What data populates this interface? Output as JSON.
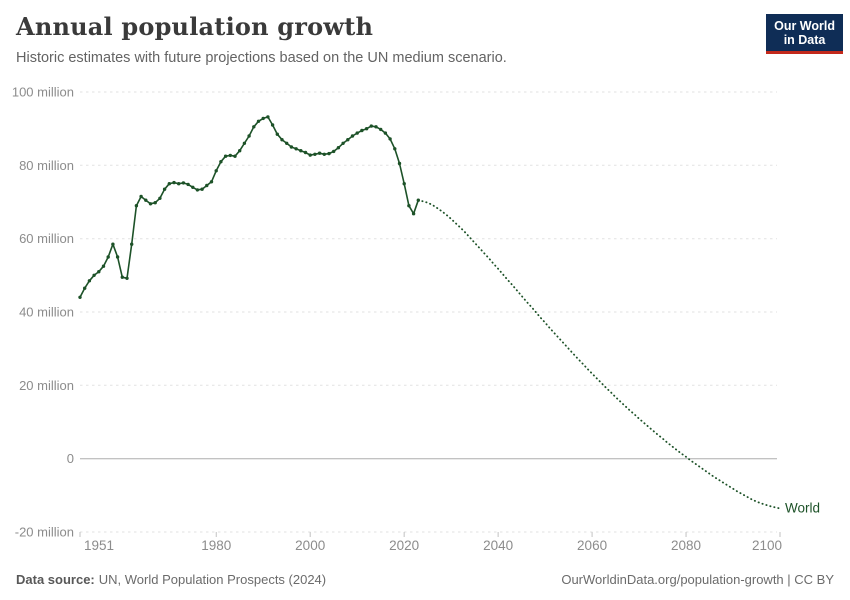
{
  "header": {
    "title": "Annual population growth",
    "subtitle": "Historic estimates with future projections based on the UN medium scenario.",
    "logo": {
      "line1": "Our World",
      "line2": "in Data",
      "bg": "#0F2D56",
      "accent": "#C3291B"
    }
  },
  "chart_data": {
    "type": "line",
    "title": "Annual population growth",
    "subtitle": "Historic estimates with future projections based on the UN medium scenario.",
    "entity_label": "World",
    "color": "#1D5228",
    "xlim": [
      1951,
      2100
    ],
    "ylim": [
      -20,
      100
    ],
    "grid": "horizontal-dashed, zero-line-solid",
    "x_ticks": [
      1951,
      1980,
      2000,
      2020,
      2040,
      2060,
      2080,
      2100
    ],
    "y_ticks": [
      {
        "value": 100,
        "label": "100 million"
      },
      {
        "value": 80,
        "label": "80 million"
      },
      {
        "value": 60,
        "label": "60 million"
      },
      {
        "value": 40,
        "label": "40 million"
      },
      {
        "value": 20,
        "label": "20 million"
      },
      {
        "value": 0,
        "label": "0"
      },
      {
        "value": -20,
        "label": "-20 million"
      }
    ],
    "unit": "million people per year",
    "series": [
      {
        "name": "World — historic estimates",
        "style": "solid",
        "markers": true,
        "start_year": 1951,
        "end_year": 2023,
        "values": [
          44,
          46.5,
          48.5,
          50,
          51,
          52.5,
          55,
          58.5,
          55,
          49.5,
          49.2,
          58.5,
          69,
          71.5,
          70.5,
          69.5,
          69.8,
          71,
          73.5,
          75,
          75.3,
          75,
          75.2,
          74.8,
          74,
          73.3,
          73.5,
          74.5,
          75.5,
          78.5,
          81,
          82.5,
          82.7,
          82.5,
          84,
          86,
          88,
          90.5,
          92,
          92.8,
          93.2,
          91,
          88.5,
          87,
          86,
          85,
          84.5,
          84,
          83.5,
          82.8,
          83,
          83.3,
          83,
          83.2,
          83.8,
          84.8,
          86,
          87,
          88,
          88.8,
          89.5,
          90,
          90.7,
          90.5,
          89.8,
          88.8,
          87.2,
          84.5,
          80.5,
          75,
          69,
          66.8,
          70.5
        ]
      },
      {
        "name": "World — UN medium projection",
        "style": "dotted",
        "markers": false,
        "start_year": 2024,
        "end_year": 2100,
        "values": [
          70.2,
          69.8,
          69.2,
          68.4,
          67.5,
          66.5,
          65.4,
          64.2,
          63,
          61.7,
          60.3,
          58.9,
          57.5,
          56.1,
          54.7,
          53.2,
          51.8,
          50.3,
          48.8,
          47.4,
          45.9,
          44.4,
          42.9,
          41.5,
          40,
          38.5,
          37.1,
          35.6,
          34.2,
          32.8,
          31.4,
          30,
          28.6,
          27.2,
          25.9,
          24.5,
          23.2,
          21.9,
          20.6,
          19.3,
          18.1,
          16.8,
          15.6,
          14.4,
          13.2,
          12.1,
          10.9,
          9.8,
          8.7,
          7.6,
          6.5,
          5.5,
          4.4,
          3.4,
          2.4,
          1.4,
          0.5,
          -0.5,
          -1.4,
          -2.3,
          -3.2,
          -4.1,
          -5,
          -5.8,
          -6.6,
          -7.4,
          -8.2,
          -9,
          -9.7,
          -10.4,
          -11.1,
          -11.7,
          -12.2,
          -12.6,
          -13,
          -13.3,
          -13.6
        ]
      }
    ]
  },
  "footer": {
    "source_label": "Data source:",
    "source_value": "UN, World Population Prospects (2024)",
    "credit": "OurWorldinData.org/population-growth | CC BY"
  }
}
